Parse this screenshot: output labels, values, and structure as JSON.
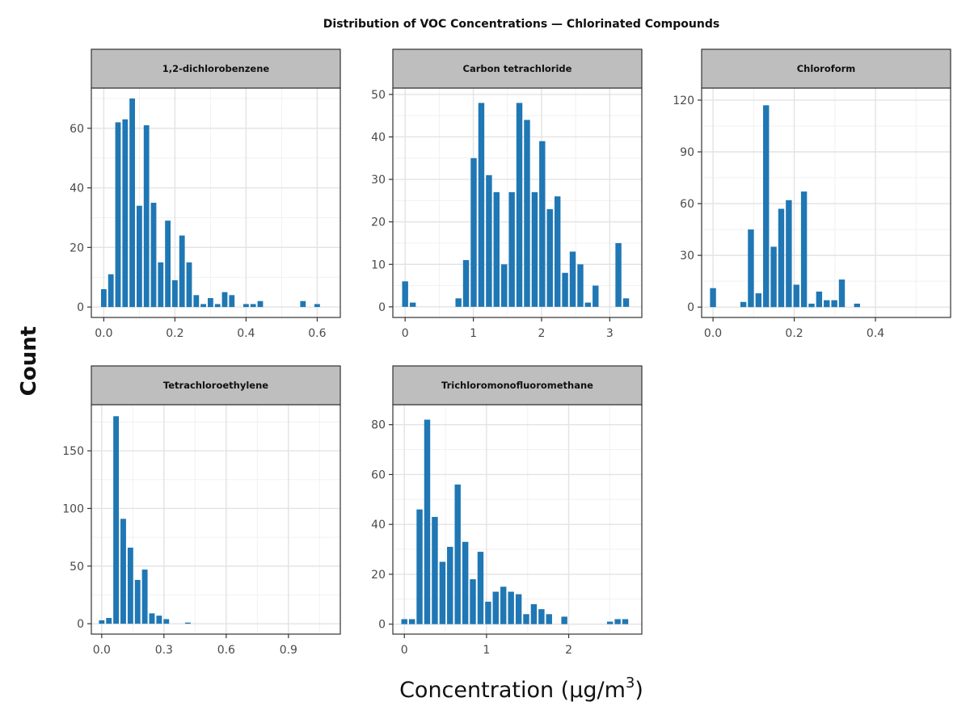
{
  "chart_data": {
    "type": "bar",
    "title": "Distribution of VOC Concentrations — Chlorinated Compounds",
    "xlabel": "Concentration (μg/m",
    "xlabel_superscript": "3",
    "xlabel_suffix": ")",
    "ylabel": "Count",
    "grid": true,
    "bar_color": "#1f77b4",
    "strip_color": "#bebebe",
    "panels": [
      {
        "name": "1,2-dichlorobenzene",
        "xlim": [
          -0.035,
          0.665
        ],
        "ylim": [
          -3.5,
          73.5
        ],
        "xticks": [
          0,
          0.2,
          0.4,
          0.6
        ],
        "xtick_labels": [
          "0.0",
          "0.2",
          "0.4",
          "0.6"
        ],
        "yticks": [
          0,
          20,
          40,
          60
        ],
        "yminor": [
          10,
          30,
          50,
          70
        ],
        "xminor": [
          0.1,
          0.3,
          0.5
        ],
        "bin_width": 0.02,
        "x": [
          0.0,
          0.02,
          0.04,
          0.06,
          0.08,
          0.1,
          0.12,
          0.14,
          0.16,
          0.18,
          0.2,
          0.22,
          0.24,
          0.26,
          0.28,
          0.3,
          0.32,
          0.34,
          0.36,
          0.38,
          0.4,
          0.42,
          0.44,
          0.46,
          0.48,
          0.5,
          0.52,
          0.54,
          0.56,
          0.58,
          0.6,
          0.62
        ],
        "values": [
          6,
          11,
          62,
          63,
          70,
          34,
          61,
          35,
          15,
          29,
          9,
          24,
          15,
          4,
          1,
          3,
          1,
          5,
          4,
          0,
          1,
          1,
          2,
          0,
          0,
          0,
          0,
          0,
          2,
          0,
          1,
          0
        ]
      },
      {
        "name": "Carbon tetrachloride",
        "xlim": [
          -0.18,
          3.47
        ],
        "ylim": [
          -2.5,
          51.5
        ],
        "xticks": [
          0,
          1,
          2,
          3
        ],
        "xtick_labels": [
          "0",
          "1",
          "2",
          "3"
        ],
        "yticks": [
          0,
          10,
          20,
          30,
          40,
          50
        ],
        "yminor": [
          5,
          15,
          25,
          35,
          45
        ],
        "xminor": [
          0.5,
          1.5,
          2.5
        ],
        "bin_width": 0.1117,
        "x": [
          0.0,
          0.112,
          0.223,
          0.335,
          0.447,
          0.558,
          0.67,
          0.782,
          0.893,
          1.005,
          1.117,
          1.229,
          1.34,
          1.452,
          1.564,
          1.675,
          1.787,
          1.899,
          2.01,
          2.122,
          2.234,
          2.345,
          2.457,
          2.569,
          2.68,
          2.792,
          2.904,
          3.015,
          3.127,
          3.239,
          3.35
        ],
        "values": [
          6,
          1,
          0,
          0,
          0,
          0,
          0,
          2,
          11,
          35,
          48,
          31,
          27,
          10,
          27,
          48,
          44,
          27,
          39,
          23,
          26,
          8,
          13,
          10,
          1,
          5,
          0,
          0,
          15,
          2,
          0
        ]
      },
      {
        "name": "Chloroform",
        "xlim": [
          -0.028,
          0.585
        ],
        "ylim": [
          -6,
          127
        ],
        "xticks": [
          0,
          0.2,
          0.4
        ],
        "xtick_labels": [
          "0.0",
          "0.2",
          "0.4"
        ],
        "yticks": [
          0,
          30,
          60,
          90,
          120
        ],
        "yminor": [
          15,
          45,
          75,
          105
        ],
        "xminor": [
          0.1,
          0.3,
          0.5
        ],
        "bin_width": 0.0187,
        "x": [
          0.0,
          0.0187,
          0.0373,
          0.056,
          0.0747,
          0.0933,
          0.112,
          0.1307,
          0.1493,
          0.168,
          0.1867,
          0.2053,
          0.224,
          0.2427,
          0.2613,
          0.28,
          0.2987,
          0.3173,
          0.336,
          0.3547
        ],
        "values": [
          11,
          0,
          0,
          0,
          3,
          45,
          8,
          117,
          35,
          57,
          62,
          13,
          67,
          2,
          9,
          4,
          4,
          16,
          0,
          2
        ]
      },
      {
        "name": "Tetrachloroethylene",
        "xlim": [
          -0.05,
          1.15
        ],
        "ylim": [
          -9,
          190
        ],
        "xticks": [
          0,
          0.3,
          0.6,
          0.9
        ],
        "xtick_labels": [
          "0.0",
          "0.3",
          "0.6",
          "0.9"
        ],
        "yticks": [
          0,
          50,
          100,
          150
        ],
        "yminor": [
          25,
          75,
          125,
          175
        ],
        "xminor": [
          0.15,
          0.45,
          0.75,
          1.05
        ],
        "bin_width": 0.0346,
        "x": [
          0.0,
          0.0346,
          0.0692,
          0.1038,
          0.1384,
          0.173,
          0.2076,
          0.2422,
          0.2768,
          0.3114,
          0.346,
          0.3806,
          0.4152
        ],
        "values": [
          3,
          5,
          180,
          91,
          66,
          38,
          47,
          9,
          7,
          4,
          0,
          0,
          1
        ]
      },
      {
        "name": "Trichloromonofluoromethane",
        "xlim": [
          -0.14,
          2.89
        ],
        "ylim": [
          -4,
          88
        ],
        "xticks": [
          0,
          1,
          2
        ],
        "xtick_labels": [
          "0",
          "1",
          "2"
        ],
        "yticks": [
          0,
          20,
          40,
          60,
          80
        ],
        "yminor": [
          10,
          30,
          50,
          70
        ],
        "xminor": [
          0.5,
          1.5,
          2.5
        ],
        "bin_width": 0.0927,
        "x": [
          0.0,
          0.093,
          0.185,
          0.278,
          0.371,
          0.464,
          0.556,
          0.649,
          0.742,
          0.834,
          0.927,
          1.02,
          1.112,
          1.205,
          1.298,
          1.391,
          1.483,
          1.576,
          1.669,
          1.761,
          1.854,
          1.947,
          2.039,
          2.132,
          2.225,
          2.317,
          2.41,
          2.503,
          2.596,
          2.688
        ],
        "values": [
          2,
          2,
          46,
          82,
          43,
          25,
          31,
          56,
          33,
          18,
          29,
          9,
          13,
          15,
          13,
          12,
          4,
          8,
          6,
          4,
          0,
          3,
          0,
          0,
          0,
          0,
          0,
          1,
          2,
          2
        ]
      }
    ]
  }
}
